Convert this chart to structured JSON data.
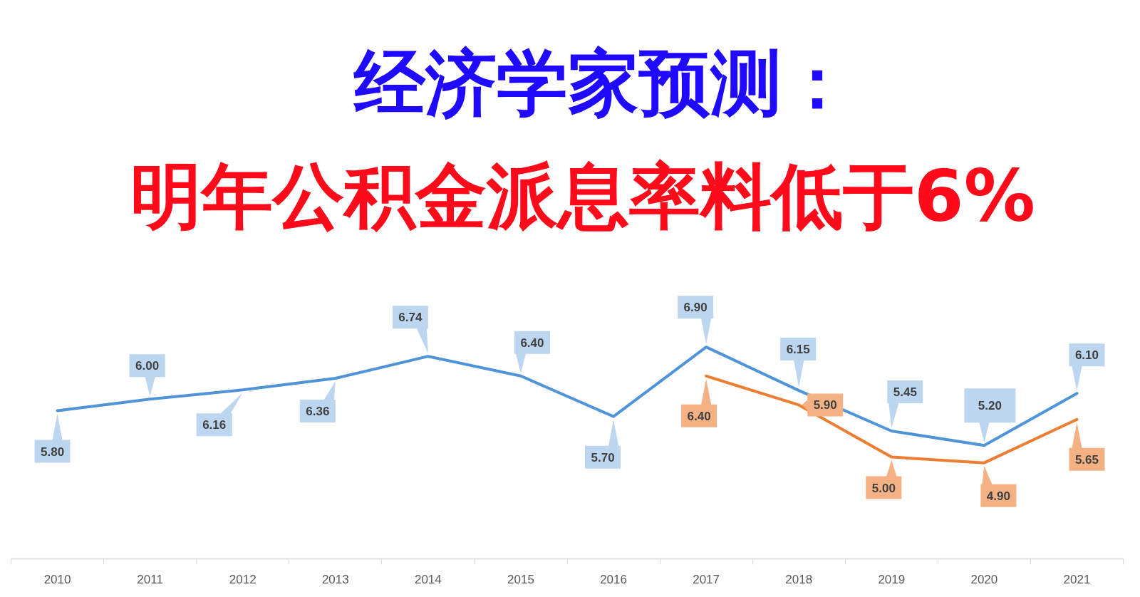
{
  "chart_data": {
    "type": "line",
    "title": "经济学家预测：",
    "subtitle": "明年公积金派息率料低于6%",
    "categories": [
      "2010",
      "2011",
      "2012",
      "2013",
      "2014",
      "2015",
      "2016",
      "2017",
      "2018",
      "2019",
      "2020",
      "2021"
    ],
    "series": [
      {
        "color": "#4f94d8",
        "values": [
          5.8,
          6.0,
          6.16,
          6.36,
          6.74,
          6.4,
          5.7,
          6.9,
          6.15,
          5.45,
          5.2,
          6.1
        ],
        "value_labels": [
          "5.80",
          "6.00",
          "6.16",
          "6.36",
          "6.74",
          "6.40",
          "5.70",
          "6.90",
          "6.15",
          "5.45",
          "5.20",
          "6.10"
        ]
      },
      {
        "color": "#ed7d31",
        "values": [
          null,
          null,
          null,
          null,
          null,
          null,
          null,
          6.4,
          5.9,
          5.0,
          4.9,
          5.65
        ],
        "value_labels": [
          null,
          null,
          null,
          null,
          null,
          null,
          null,
          "6.40",
          "5.90",
          "5.00",
          "4.90",
          "5.65"
        ]
      }
    ],
    "tick_labels": "x",
    "line_style": "solid"
  }
}
